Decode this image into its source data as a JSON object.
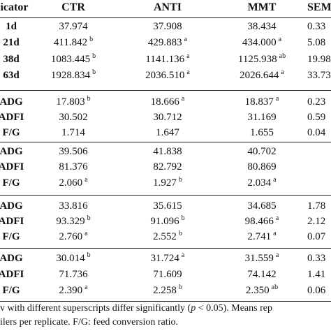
{
  "header": {
    "first": "licator",
    "columns": [
      "CTR",
      "ANTI",
      "MMT",
      "SEM"
    ]
  },
  "groups": [
    [
      {
        "label": "1d",
        "cells": [
          {
            "value": "37.974",
            "sup": null
          },
          {
            "value": "37.908",
            "sup": null
          },
          {
            "value": "38.434",
            "sup": null
          },
          {
            "value": "0.33",
            "sup": null
          }
        ]
      },
      {
        "label": "21d",
        "cells": [
          {
            "value": "411.842",
            "sup": "b"
          },
          {
            "value": "429.883",
            "sup": "a"
          },
          {
            "value": "434.000",
            "sup": "a"
          },
          {
            "value": "5.08",
            "sup": null
          }
        ]
      },
      {
        "label": "38d",
        "cells": [
          {
            "value": "1083.445",
            "sup": "b"
          },
          {
            "value": "1141.136",
            "sup": "a"
          },
          {
            "value": "1125.938",
            "sup": "ab"
          },
          {
            "value": "19.98",
            "sup": null
          }
        ]
      },
      {
        "label": "63d",
        "cells": [
          {
            "value": "1928.834",
            "sup": "b"
          },
          {
            "value": "2036.510",
            "sup": "a"
          },
          {
            "value": "2026.644",
            "sup": "a"
          },
          {
            "value": "33.73",
            "sup": null
          }
        ]
      }
    ],
    [
      {
        "label": "ADG",
        "cells": [
          {
            "value": "17.803",
            "sup": "b"
          },
          {
            "value": "18.666",
            "sup": "a"
          },
          {
            "value": "18.837",
            "sup": "a"
          },
          {
            "value": "0.23",
            "sup": null
          }
        ]
      },
      {
        "label": "ADFI",
        "cells": [
          {
            "value": "30.502",
            "sup": null
          },
          {
            "value": "30.712",
            "sup": null
          },
          {
            "value": "31.169",
            "sup": null
          },
          {
            "value": "0.59",
            "sup": null
          }
        ]
      },
      {
        "label": "F/G",
        "cells": [
          {
            "value": "1.714",
            "sup": null
          },
          {
            "value": "1.647",
            "sup": null
          },
          {
            "value": "1.655",
            "sup": null
          },
          {
            "value": "0.04",
            "sup": null
          }
        ]
      }
    ],
    [
      {
        "label": "ADG",
        "cells": [
          {
            "value": "39.506",
            "sup": null
          },
          {
            "value": "41.838",
            "sup": null
          },
          {
            "value": "40.702",
            "sup": null
          },
          null
        ]
      },
      {
        "label": "ADFI",
        "cells": [
          {
            "value": "81.376",
            "sup": null
          },
          {
            "value": "82.792",
            "sup": null
          },
          {
            "value": "80.869",
            "sup": null
          },
          null
        ]
      },
      {
        "label": "F/G",
        "cells": [
          {
            "value": "2.060",
            "sup": "a"
          },
          {
            "value": "1.927",
            "sup": "b"
          },
          {
            "value": "2.034",
            "sup": "a"
          },
          null
        ]
      }
    ],
    [
      {
        "label": "ADG",
        "cells": [
          {
            "value": "33.816",
            "sup": null
          },
          {
            "value": "35.615",
            "sup": null
          },
          {
            "value": "34.685",
            "sup": null
          },
          {
            "value": "1.78",
            "sup": null
          }
        ]
      },
      {
        "label": "ADFI",
        "cells": [
          {
            "value": "93.329",
            "sup": "b"
          },
          {
            "value": "91.096",
            "sup": "b"
          },
          {
            "value": "98.466",
            "sup": "a"
          },
          {
            "value": "2.12",
            "sup": null
          }
        ]
      },
      {
        "label": "F/G",
        "cells": [
          {
            "value": "2.760",
            "sup": "a"
          },
          {
            "value": "2.552",
            "sup": "b"
          },
          {
            "value": "2.741",
            "sup": "a"
          },
          {
            "value": "0.07",
            "sup": null
          }
        ]
      }
    ],
    [
      {
        "label": "ADG",
        "cells": [
          {
            "value": "30.014",
            "sup": "b"
          },
          {
            "value": "31.724",
            "sup": "a"
          },
          {
            "value": "31.559",
            "sup": "a"
          },
          {
            "value": "0.33",
            "sup": null
          }
        ]
      },
      {
        "label": "ADFI",
        "cells": [
          {
            "value": "71.736",
            "sup": null
          },
          {
            "value": "71.609",
            "sup": null
          },
          {
            "value": "74.142",
            "sup": null
          },
          {
            "value": "1.41",
            "sup": null
          }
        ]
      },
      {
        "label": "F/G",
        "cells": [
          {
            "value": "2.390",
            "sup": "a"
          },
          {
            "value": "2.258",
            "sup": "b"
          },
          {
            "value": "2.350",
            "sup": "ab"
          },
          {
            "value": "0.06",
            "sup": null
          }
        ]
      }
    ]
  ],
  "footnote": [
    [
      "v with different superscripts differ significantly (",
      "p",
      " < 0.05). Means rep"
    ],
    "ilers per replicate. F/G: feed conversion ratio."
  ]
}
